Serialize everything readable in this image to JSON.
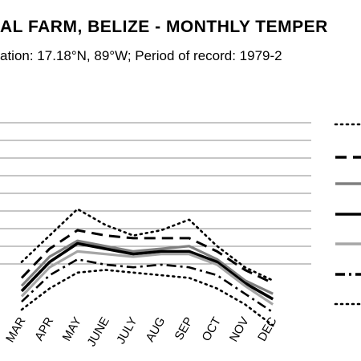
{
  "chart_data": {
    "type": "line",
    "title": "AL FARM, BELIZE - MONTHLY TEMPER",
    "subtitle": "ation: 17.18°N, 89°W; Period of record: 1979-2",
    "categories": [
      "MAR",
      "APR",
      "MAY",
      "JUNE",
      "JULY",
      "AUG",
      "SEP",
      "OCT",
      "NOV",
      "DEC"
    ],
    "grid": true,
    "legend_position": "right",
    "series": [
      {
        "style": "dotted-black",
        "values": [
          28,
          33,
          38,
          35,
          33,
          34,
          36,
          31,
          27,
          24.5
        ]
      },
      {
        "style": "long-dash-black",
        "values": [
          25,
          30.5,
          34,
          33,
          32.5,
          32.5,
          32.5,
          30,
          26.5,
          24
        ]
      },
      {
        "style": "solid-gray",
        "values": [
          23.5,
          29,
          32,
          31,
          30,
          30.5,
          31,
          28.5,
          24.5,
          22
        ]
      },
      {
        "style": "solid-black",
        "values": [
          22.5,
          28,
          31.5,
          30.5,
          29.5,
          30,
          30,
          28,
          24,
          21
        ]
      },
      {
        "style": "solid-lightgray",
        "values": [
          21.5,
          27,
          30,
          29.5,
          29,
          29.5,
          29.5,
          27.5,
          23.5,
          20
        ]
      },
      {
        "style": "dash-dot-black",
        "values": [
          20.5,
          25.5,
          28.5,
          27.5,
          27,
          27.5,
          27,
          25.5,
          22,
          18.5
        ]
      },
      {
        "style": "dotted-black",
        "values": [
          19,
          23,
          26,
          26.5,
          26,
          25.5,
          25,
          23,
          20,
          16
        ]
      }
    ]
  }
}
